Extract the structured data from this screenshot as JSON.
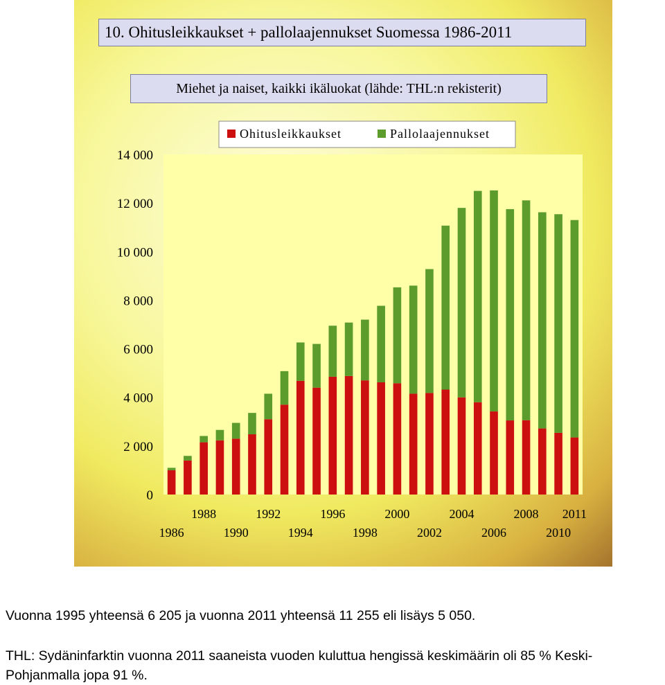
{
  "title": "10. Ohitusleikkaukset + pallolaajennukset Suomessa 1986-2011",
  "subtitle": "Miehet ja naiset, kaikki ikäluokat (lähde: THL:n rekisterit)",
  "notes": {
    "line1": "Vuonna 1995 yhteensä 6 205 ja vuonna 2011 yhteensä 11 255 eli lisäys 5 050.",
    "line2": "THL: Sydäninfarktin vuonna 2011 saaneista vuoden kuluttua hengissä keskimäärin oli 85 %  Keski-Pohjanmalla jopa  91 %."
  },
  "colors": {
    "ohitus": "#cc1010",
    "pallo": "#5c9c2c",
    "plot_bg": "#ffffa8"
  },
  "chart_data": {
    "type": "bar",
    "stacked": true,
    "categories": [
      "1986",
      "1987",
      "1988",
      "1989",
      "1990",
      "1991",
      "1992",
      "1993",
      "1994",
      "1995",
      "1996",
      "1997",
      "1998",
      "1999",
      "2000",
      "2001",
      "2002",
      "2003",
      "2004",
      "2005",
      "2006",
      "2007",
      "2008",
      "2009",
      "2010",
      "2011"
    ],
    "tick_labels_upper": [
      "1988",
      "1992",
      "1996",
      "2000",
      "2004",
      "2008",
      "2011"
    ],
    "tick_labels_lower": [
      "1986",
      "1990",
      "1994",
      "1998",
      "2002",
      "2006",
      "2010"
    ],
    "series": [
      {
        "name": "Ohitusleikkaukset",
        "values": [
          1000,
          1400,
          2150,
          2230,
          2300,
          2480,
          3100,
          3700,
          4680,
          4400,
          4850,
          4880,
          4700,
          4620,
          4580,
          4150,
          4180,
          4320,
          4000,
          3800,
          3420,
          3050,
          3060,
          2720,
          2540,
          2350
        ]
      },
      {
        "name": "Pallolaajennukset",
        "values": [
          100,
          190,
          260,
          430,
          650,
          880,
          1050,
          1380,
          1580,
          1800,
          2100,
          2200,
          2500,
          3150,
          3950,
          4450,
          5100,
          6750,
          7800,
          8700,
          9100,
          8700,
          9050,
          8900,
          9000,
          8950
        ]
      }
    ],
    "yticks": [
      0,
      2000,
      4000,
      6000,
      8000,
      10000,
      12000,
      14000
    ],
    "ytick_labels": [
      "0",
      "2 000",
      "4 000",
      "6 000",
      "8 000",
      "10 000",
      "12 000",
      "14 000"
    ],
    "ylim": [
      0,
      14000
    ],
    "xlabel": "",
    "ylabel": "",
    "legend_position": "top"
  }
}
